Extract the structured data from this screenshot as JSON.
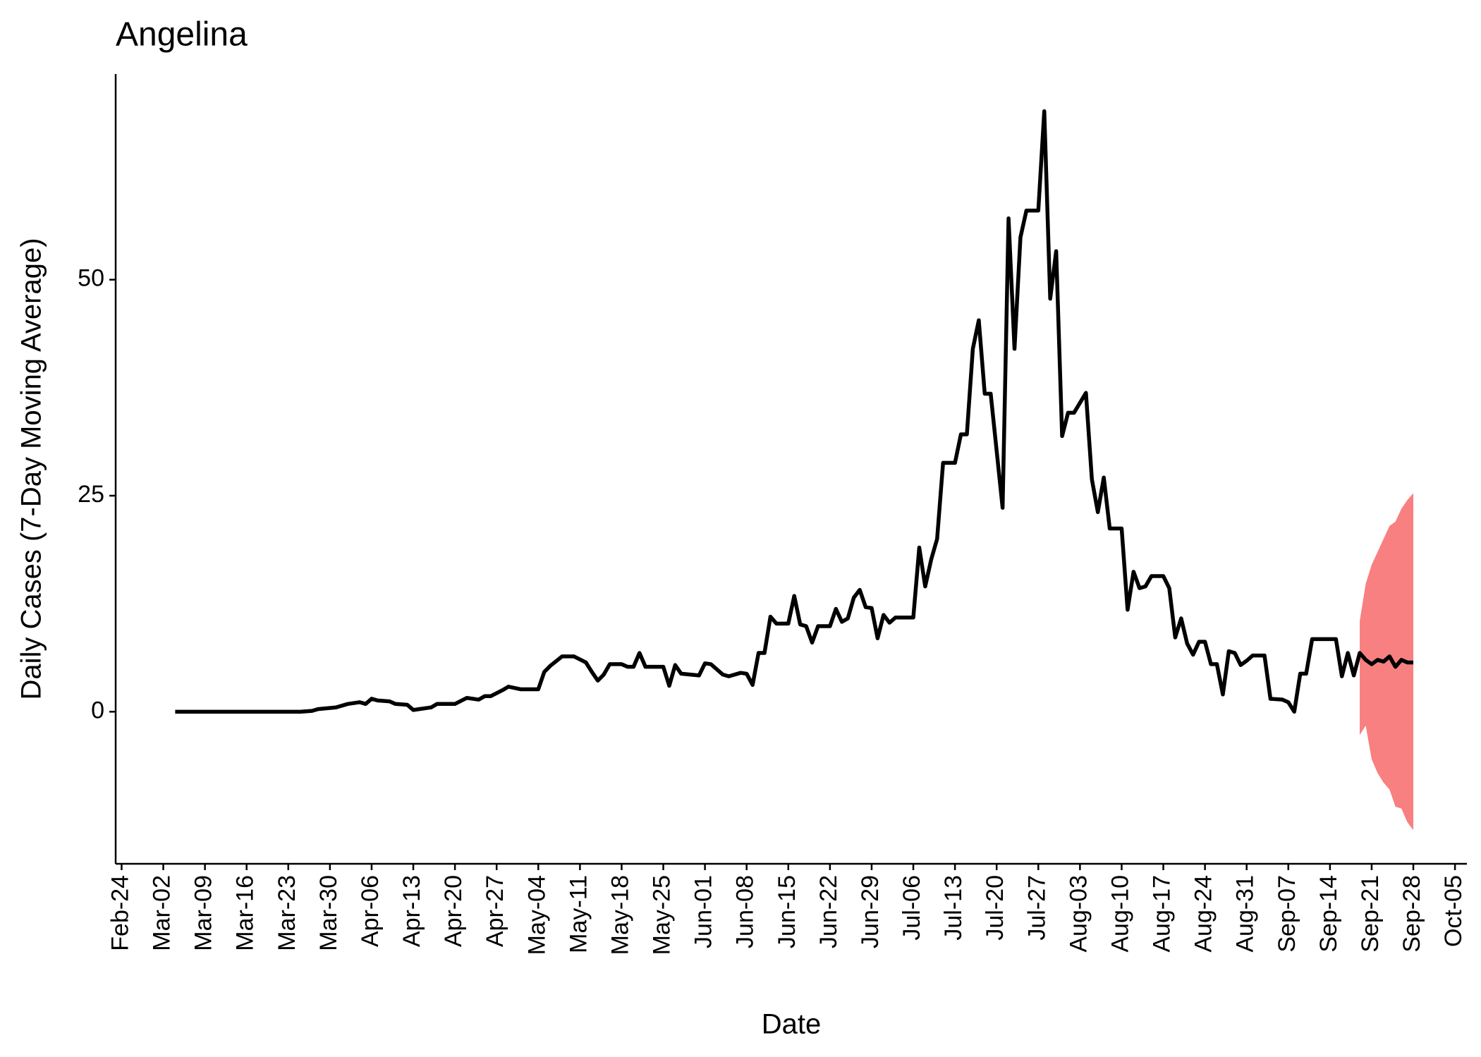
{
  "chart_data": {
    "type": "line",
    "title": "Angelina",
    "x_label": "Date",
    "y_label": "Daily Cases (7-Day Moving Average)",
    "x": [
      "Mar-04",
      "Mar-25",
      "Mar-27",
      "Mar-28",
      "Mar-31",
      "Apr-02",
      "Apr-04",
      "Apr-05",
      "Apr-06",
      "Apr-07",
      "Apr-09",
      "Apr-10",
      "Apr-12",
      "Apr-13",
      "Apr-14",
      "Apr-16",
      "Apr-17",
      "Apr-20",
      "Apr-22",
      "Apr-24",
      "Apr-25",
      "Apr-26",
      "Apr-28",
      "Apr-29",
      "May-01",
      "May-04",
      "May-05",
      "May-06",
      "May-08",
      "May-10",
      "May-12",
      "May-13",
      "May-14",
      "May-15",
      "May-16",
      "May-18",
      "May-19",
      "May-20",
      "May-21",
      "May-22",
      "May-25",
      "May-26",
      "May-27",
      "May-28",
      "May-31",
      "Jun-01",
      "Jun-02",
      "Jun-04",
      "Jun-05",
      "Jun-07",
      "Jun-08",
      "Jun-09",
      "Jun-10",
      "Jun-11",
      "Jun-12",
      "Jun-13",
      "Jun-15",
      "Jun-16",
      "Jun-17",
      "Jun-18",
      "Jun-19",
      "Jun-20",
      "Jun-22",
      "Jun-23",
      "Jun-24",
      "Jun-25",
      "Jun-26",
      "Jun-27",
      "Jun-28",
      "Jun-29",
      "Jun-30",
      "Jul-01",
      "Jul-02",
      "Jul-03",
      "Jul-06",
      "Jul-07",
      "Jul-08",
      "Jul-09",
      "Jul-10",
      "Jul-11",
      "Jul-13",
      "Jul-14",
      "Jul-15",
      "Jul-16",
      "Jul-17",
      "Jul-18",
      "Jul-19",
      "Jul-21",
      "Jul-22",
      "Jul-23",
      "Jul-24",
      "Jul-25",
      "Jul-27",
      "Jul-28",
      "Jul-29",
      "Jul-30",
      "Jul-31",
      "Aug-01",
      "Aug-02",
      "Aug-04",
      "Aug-05",
      "Aug-06",
      "Aug-07",
      "Aug-08",
      "Aug-10",
      "Aug-11",
      "Aug-12",
      "Aug-13",
      "Aug-14",
      "Aug-15",
      "Aug-17",
      "Aug-18",
      "Aug-19",
      "Aug-20",
      "Aug-21",
      "Aug-22",
      "Aug-23",
      "Aug-24",
      "Aug-25",
      "Aug-26",
      "Aug-27",
      "Aug-28",
      "Aug-29",
      "Aug-30",
      "Aug-31",
      "Sep-01",
      "Sep-03",
      "Sep-04",
      "Sep-06",
      "Sep-07",
      "Sep-08",
      "Sep-09",
      "Sep-10",
      "Sep-11",
      "Sep-15",
      "Sep-16",
      "Sep-17",
      "Sep-18",
      "Sep-19",
      "Sep-20",
      "Sep-21",
      "Sep-22",
      "Sep-23",
      "Sep-24",
      "Sep-25",
      "Sep-26",
      "Sep-27",
      "Sep-28"
    ],
    "series": [
      {
        "color": "#000000",
        "values": [
          0,
          0,
          0.1,
          0.3,
          0.5,
          0.9,
          1.1,
          0.9,
          1.5,
          1.3,
          1.2,
          0.9,
          0.8,
          0.2,
          0.3,
          0.5,
          0.9,
          0.9,
          1.6,
          1.4,
          1.8,
          1.8,
          2.5,
          2.9,
          2.6,
          2.6,
          4.6,
          5.3,
          6.4,
          6.4,
          5.7,
          4.6,
          3.6,
          4.3,
          5.5,
          5.5,
          5.2,
          5.2,
          6.8,
          5.2,
          5.2,
          3.0,
          5.4,
          4.4,
          4.2,
          5.6,
          5.5,
          4.3,
          4.1,
          4.5,
          4.4,
          3.1,
          6.8,
          6.8,
          11.0,
          10.2,
          10.2,
          13.4,
          10.1,
          9.9,
          8.0,
          9.9,
          9.9,
          11.9,
          10.4,
          10.8,
          13.2,
          14.1,
          12.1,
          12.0,
          8.5,
          11.2,
          10.3,
          10.9,
          10.9,
          19.0,
          14.5,
          17.6,
          20.0,
          28.8,
          28.8,
          32.1,
          32.1,
          42.0,
          45.3,
          36.8,
          36.8,
          23.6,
          57.1,
          42.0,
          54.9,
          58.0,
          58.0,
          69.5,
          47.8,
          53.3,
          31.9,
          34.6,
          34.6,
          36.9,
          26.9,
          23.1,
          27.1,
          21.2,
          21.2,
          11.8,
          16.2,
          14.3,
          14.5,
          15.7,
          15.7,
          14.3,
          8.6,
          10.8,
          7.9,
          6.6,
          8.1,
          8.1,
          5.5,
          5.5,
          2.0,
          7.0,
          6.8,
          5.4,
          5.9,
          6.5,
          6.5,
          1.5,
          1.4,
          1.1,
          0,
          4.4,
          4.4,
          8.4,
          8.4,
          4.1,
          6.8,
          4.2,
          6.8,
          6.0,
          5.5,
          6.0,
          5.8,
          6.4,
          5.2,
          6.0,
          5.7,
          5.7
        ]
      }
    ],
    "band": {
      "color": "#f88080",
      "x": [
        "Sep-19",
        "Sep-20",
        "Sep-21",
        "Sep-22",
        "Sep-23",
        "Sep-24",
        "Sep-25",
        "Sep-26",
        "Sep-27",
        "Sep-28"
      ],
      "upper": [
        10.5,
        14.8,
        17.0,
        18.5,
        20.0,
        21.5,
        22.0,
        23.5,
        24.5,
        25.3
      ],
      "lower": [
        -2.7,
        -1.6,
        -5.5,
        -7.1,
        -8.2,
        -9.0,
        -11.0,
        -11.2,
        -12.8,
        -13.7
      ]
    },
    "xlim": [
      "Feb-23",
      "Oct-07"
    ],
    "xticks": [
      "Feb-24",
      "Mar-02",
      "Mar-09",
      "Mar-16",
      "Mar-23",
      "Mar-30",
      "Apr-06",
      "Apr-13",
      "Apr-20",
      "Apr-27",
      "May-04",
      "May-11",
      "May-18",
      "May-25",
      "Jun-01",
      "Jun-08",
      "Jun-15",
      "Jun-22",
      "Jun-29",
      "Jul-06",
      "Jul-13",
      "Jul-20",
      "Jul-27",
      "Aug-03",
      "Aug-10",
      "Aug-17",
      "Aug-24",
      "Aug-31",
      "Sep-07",
      "Sep-14",
      "Sep-21",
      "Sep-28",
      "Oct-05"
    ],
    "ylim": [
      -17.6,
      73.8
    ],
    "yticks": [
      0,
      25,
      50
    ],
    "grid": false
  }
}
